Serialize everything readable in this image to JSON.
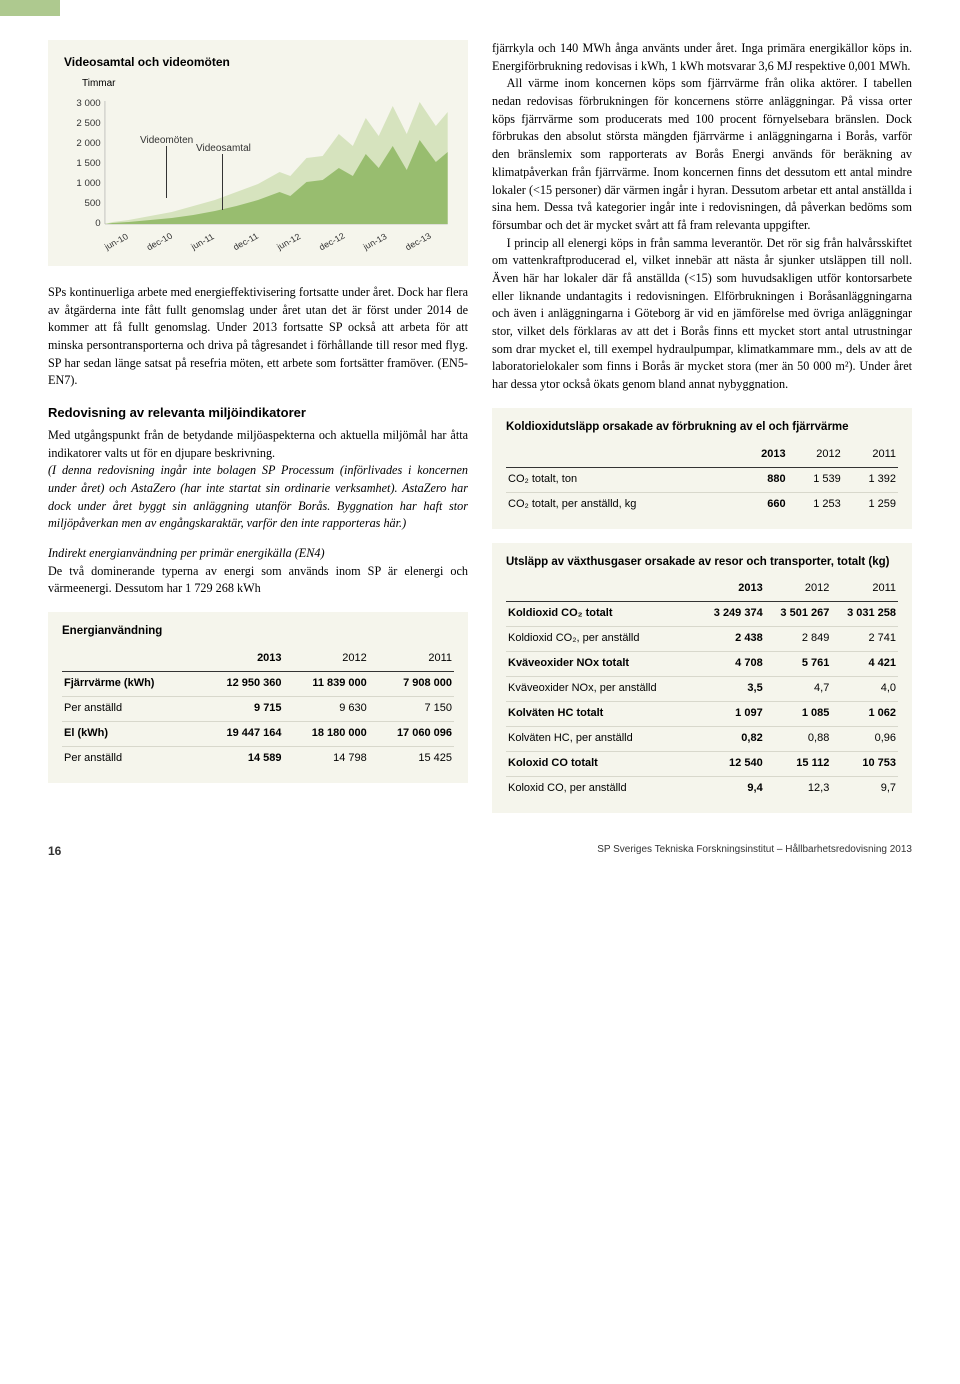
{
  "top_tab_color": "#aec98f",
  "chart": {
    "title": "Videosamtal och videomöten",
    "y_unit": "Timmar",
    "type": "area",
    "y_ticks": [
      "3 000",
      "2 500",
      "2 000",
      "1 500",
      "1 000",
      "500",
      "0"
    ],
    "x_ticks": [
      "jun-10",
      "dec-10",
      "jun-11",
      "dec-11",
      "jun-12",
      "dec-12",
      "jun-13",
      "dec-13"
    ],
    "series": [
      {
        "name": "Videomöten",
        "color": "#d6e3be"
      },
      {
        "name": "Videosamtal",
        "color": "#98bd6f"
      }
    ],
    "y_axis_fontsize": 10,
    "x_axis_fontsize": 9
  },
  "left_body": {
    "p1": "SPs kontinuerliga arbete med energieffektivisering fortsatte under året. Dock har flera av åtgärderna inte fått fullt genomslag under året utan det är först under 2014 de kommer att få fullt genomslag. Under 2013 fortsatte SP också att arbeta för att minska persontransporterna och driva på tågresandet i förhållande till resor med flyg. SP har sedan länge satsat på resefria möten, ett arbete som fortsätter framöver. (EN5-EN7).",
    "h3": "Redovisning av relevanta miljöindikatorer",
    "p2": "Med utgångspunkt från de betydande miljöaspekterna och aktuella miljömål har åtta indikatorer valts ut för en djupare beskrivning.",
    "p3_italic": "(I denna redovisning ingår inte bolagen SP Processum (införlivades i koncernen under året) och AstaZero (har inte startat sin ordinarie verksamhet). AstaZero har dock under året byggt sin anläggning utanför Borås. Byggnation har haft stor miljöpåverkan men av engångskaraktär, varför den inte rapporteras här.)",
    "p4_hdr": "Indirekt energianvändning per primär energikälla (EN4)",
    "p4": "De två dominerande typerna av energi som används inom SP är elenergi och värmeenergi. Dessutom har 1 729 268 kWh"
  },
  "energy_table": {
    "caption": "Energianvändning",
    "years": [
      "2013",
      "2012",
      "2011"
    ],
    "rows": [
      {
        "label": "Fjärrvärme (kWh)",
        "v": [
          "12 950 360",
          "11 839 000",
          "7 908 000"
        ],
        "bold": true
      },
      {
        "label": "Per anställd",
        "v": [
          "9 715",
          "9 630",
          "7 150"
        ],
        "bold": false
      },
      {
        "label": "El (kWh)",
        "v": [
          "19 447 164",
          "18 180 000",
          "17 060 096"
        ],
        "bold": true
      },
      {
        "label": "Per anställd",
        "v": [
          "14 589",
          "14 798",
          "15 425"
        ],
        "bold": false
      }
    ]
  },
  "right_body": {
    "p1": "fjärrkyla och 140 MWh ånga använts under året. Inga primära energikällor köps in. Energiförbrukning redovisas i kWh, 1 kWh motsvarar 3,6 MJ respektive 0,001 MWh.",
    "p2": "All värme inom koncernen köps som fjärrvärme från olika aktörer. I tabellen nedan redovisas förbrukningen för koncernens större anläggningar. På vissa orter köps fjärrvärme som producerats med 100 procent förnyelsebara bränslen. Dock förbrukas den absolut största mängden fjärrvärme i anläggningarna i Borås, varför den bränslemix som rapporterats av Borås Energi används för beräkning av klimatpåverkan från fjärrvärme. Inom koncernen finns det dessutom ett antal mindre lokaler (<15 personer) där värmen ingår i hyran. Dessutom arbetar ett antal anställda i sina hem. Dessa två kategorier ingår inte i redovisningen, då påverkan bedöms som försumbar och det är mycket svårt att få fram relevanta uppgifter.",
    "p3": "I princip all elenergi köps in från samma leverantör. Det rör sig från halvårsskiftet om vattenkraftproducerad el, vilket innebär att nästa år sjunker utsläppen till noll. Även här har lokaler där få anställda (<15) som huvudsakligen utför kontorsarbete eller liknande undantagits i redovisningen. Elförbrukningen i Boråsanläggningarna och även i anläggningarna i Göteborg är vid en jämförelse med övriga anläggningar stor, vilket dels förklaras av att det i Borås finns ett mycket stort antal utrustningar som drar mycket el, till exempel hydraulpumpar, klimatkammare mm., dels av att de laboratorielokaler som finns i Borås är mycket stora (mer än 50 000 m²). Under året har dessa ytor också ökats genom bland annat nybyggnation."
  },
  "co2_table": {
    "caption": "Koldioxidutsläpp orsakade av förbrukning av el och fjärrvärme",
    "years": [
      "2013",
      "2012",
      "2011"
    ],
    "rows": [
      {
        "label": "CO₂ totalt, ton",
        "v": [
          "880",
          "1 539",
          "1 392"
        ]
      },
      {
        "label": "CO₂ totalt, per anställd, kg",
        "v": [
          "660",
          "1 253",
          "1 259"
        ]
      }
    ]
  },
  "ghg_table": {
    "caption": "Utsläpp av växthusgaser orsakade av resor och transporter, totalt (kg)",
    "years": [
      "2013",
      "2012",
      "2011"
    ],
    "rows": [
      {
        "label": "Koldioxid CO₂ totalt",
        "v": [
          "3 249 374",
          "3 501 267",
          "3 031 258"
        ],
        "bold": true
      },
      {
        "label": "Koldioxid CO₂, per anställd",
        "v": [
          "2 438",
          "2 849",
          "2 741"
        ],
        "bold": false
      },
      {
        "label": "Kväveoxider NOx totalt",
        "v": [
          "4 708",
          "5 761",
          "4 421"
        ],
        "bold": true
      },
      {
        "label": "Kväveoxider NOx, per anställd",
        "v": [
          "3,5",
          "4,7",
          "4,0"
        ],
        "bold": false
      },
      {
        "label": "Kolväten HC totalt",
        "v": [
          "1 097",
          "1 085",
          "1 062"
        ],
        "bold": true
      },
      {
        "label": "Kolväten HC, per anställd",
        "v": [
          "0,82",
          "0,88",
          "0,96"
        ],
        "bold": false
      },
      {
        "label": "Koloxid CO totalt",
        "v": [
          "12 540",
          "15 112",
          "10 753"
        ],
        "bold": true
      },
      {
        "label": "Koloxid CO, per anställd",
        "v": [
          "9,4",
          "12,3",
          "9,7"
        ],
        "bold": false
      }
    ]
  },
  "footer": {
    "page": "16",
    "text": "SP Sveriges Tekniska Forskningsinstitut – Hållbarhetsredovisning 2013"
  }
}
